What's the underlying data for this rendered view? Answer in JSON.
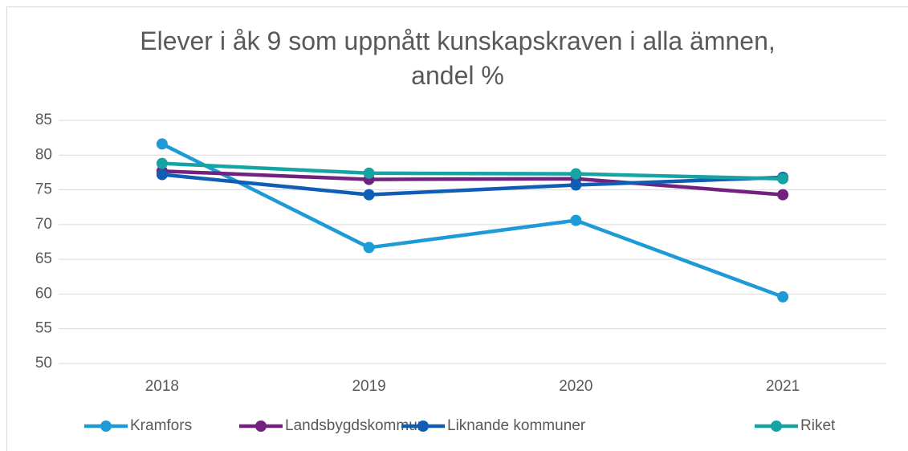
{
  "chart_data": {
    "type": "line",
    "title": "Elever i åk 9 som uppnått kunskapskraven i alla ämnen, andel %",
    "categories": [
      "2018",
      "2019",
      "2020",
      "2021"
    ],
    "series": [
      {
        "name": "Kramfors",
        "color": "#1e9bd7",
        "values": [
          81.6,
          66.7,
          70.6,
          59.6
        ]
      },
      {
        "name": "Landsbygdskommun",
        "color": "#70227e",
        "values": [
          77.7,
          76.5,
          76.6,
          74.3
        ]
      },
      {
        "name": "Liknande kommuner",
        "color": "#0f5db4",
        "values": [
          77.2,
          74.3,
          75.7,
          76.8
        ]
      },
      {
        "name": "Riket",
        "color": "#16a3a4",
        "values": [
          78.8,
          77.4,
          77.3,
          76.6
        ]
      }
    ],
    "ylim": [
      50,
      85
    ],
    "yticks": [
      50,
      55,
      60,
      65,
      70,
      75,
      80,
      85
    ],
    "grid": true,
    "legend": "bottom"
  }
}
